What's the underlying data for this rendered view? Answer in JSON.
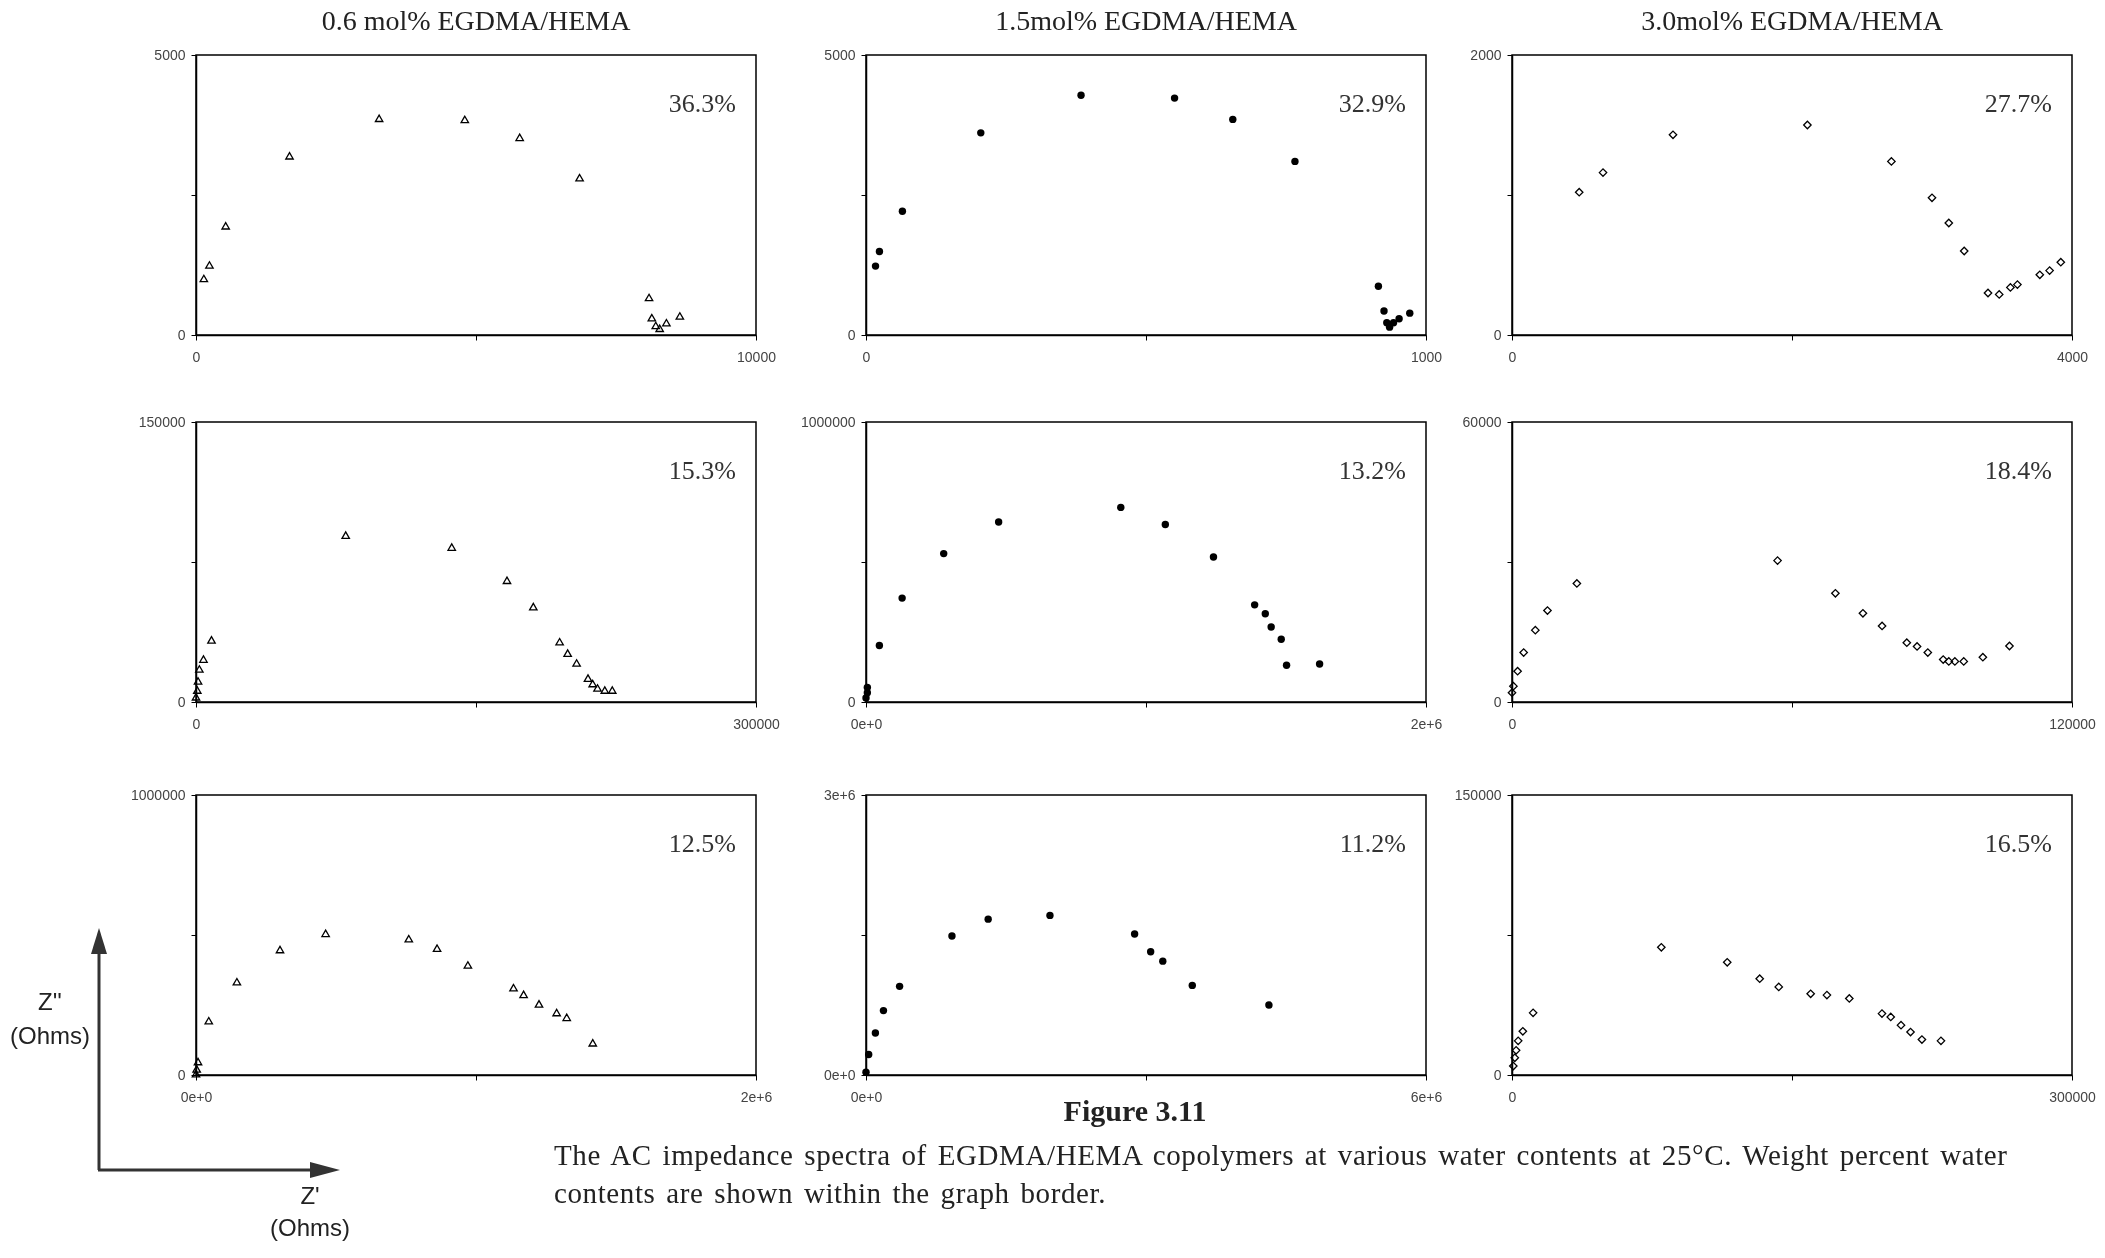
{
  "chart_data": [
    {
      "type": "scatter",
      "title": "0.6 mol% EGDMA/HEMA",
      "marker": "triangle",
      "annotations": [
        "36.3%"
      ],
      "xlim": [
        0,
        10000
      ],
      "ylim": [
        0,
        5000
      ],
      "xticks": [
        0,
        {
          "value": 5000,
          "label": null
        },
        10000
      ],
      "yticks": [
        0,
        {
          "value": 2500,
          "label": null
        },
        5000
      ],
      "series": [
        {
          "color": "#000000",
          "x": [
            140,
            240,
            530,
            1670,
            3270,
            4800,
            5780,
            6850,
            8090,
            8140,
            8210,
            8280,
            8400,
            8640
          ],
          "values": [
            1010,
            1250,
            1950,
            3200,
            3870,
            3850,
            3530,
            2810,
            670,
            310,
            170,
            120,
            220,
            340
          ]
        }
      ]
    },
    {
      "type": "scatter",
      "title": "1.5mol% EGDMA/HEMA",
      "marker": "circle",
      "annotations": [
        "32.9%"
      ],
      "xlim": [
        0,
        1000
      ],
      "ylim": [
        0,
        5000
      ],
      "xticks": [
        0,
        {
          "value": 500,
          "label": null
        },
        1000
      ],
      "yticks": [
        0,
        {
          "value": 2500,
          "label": null
        },
        5000
      ],
      "series": [
        {
          "color": "#000000",
          "x": [
            17,
            24,
            65,
            205,
            384,
            551,
            655,
            766,
            915,
            925,
            930,
            935,
            942,
            952,
            971
          ],
          "values": [
            1230,
            1490,
            2210,
            3610,
            4280,
            4230,
            3850,
            3100,
            870,
            430,
            220,
            140,
            220,
            290,
            390
          ]
        }
      ]
    },
    {
      "type": "scatter",
      "title": "3.0mol% EGDMA/HEMA",
      "marker": "diamond",
      "annotations": [
        "27.7%"
      ],
      "xlim": [
        0,
        4000
      ],
      "ylim": [
        0,
        2000
      ],
      "xticks": [
        0,
        {
          "value": 2000,
          "label": null
        },
        4000
      ],
      "yticks": [
        0,
        {
          "value": 1000,
          "label": null
        },
        2000
      ],
      "series": [
        {
          "color": "#000000",
          "x": [
            480,
            650,
            1150,
            2110,
            2710,
            3000,
            3120,
            3230,
            3400,
            3480,
            3560,
            3610,
            3770,
            3840,
            3920
          ],
          "values": [
            1020,
            1160,
            1430,
            1500,
            1240,
            980,
            800,
            600,
            300,
            290,
            340,
            360,
            430,
            460,
            520
          ]
        }
      ]
    },
    {
      "type": "scatter",
      "marker": "triangle",
      "annotations": [
        "15.3%"
      ],
      "xlim": [
        0,
        300000
      ],
      "ylim": [
        0,
        150000
      ],
      "xticks": [
        0,
        {
          "value": 150000,
          "label": null
        },
        300000
      ],
      "yticks": [
        0,
        {
          "value": 75000,
          "label": null
        },
        150000
      ],
      "series": [
        {
          "color": "#000000",
          "x": [
            0,
            700,
            1100,
            1800,
            4000,
            8300,
            80200,
            137000,
            166600,
            180700,
            194800,
            199100,
            203900,
            210000,
            212500,
            215100,
            219000,
            223000
          ],
          "values": [
            2800,
            6400,
            11300,
            17700,
            23000,
            33300,
            89400,
            83000,
            65200,
            51100,
            32300,
            26200,
            20900,
            12800,
            9900,
            7500,
            6400,
            6400
          ]
        }
      ]
    },
    {
      "type": "scatter",
      "marker": "circle",
      "annotations": [
        "13.2%"
      ],
      "xlim": [
        0,
        2000000
      ],
      "ylim": [
        0,
        1000000
      ],
      "xticks": [
        {
          "value": 0,
          "label": "0e+0"
        },
        {
          "value": 1000000,
          "label": null
        },
        {
          "value": 2000000,
          "label": "2e+6"
        }
      ],
      "yticks": [
        0,
        {
          "value": 500000,
          "label": null
        },
        1000000
      ],
      "series": [
        {
          "color": "#000000",
          "x": [
            0,
            4800,
            4800,
            47800,
            129000,
            277500,
            473700,
            910000,
            1069000,
            1241000,
            1388000,
            1426000,
            1447000,
            1483000,
            1502000,
            1620000
          ],
          "values": [
            14000,
            33000,
            52000,
            202000,
            371000,
            530000,
            643000,
            695000,
            634000,
            518000,
            347000,
            315000,
            268000,
            224000,
            131000,
            136000
          ]
        }
      ]
    },
    {
      "type": "scatter",
      "marker": "diamond",
      "annotations": [
        "18.4%"
      ],
      "xlim": [
        0,
        120000
      ],
      "ylim": [
        0,
        60000
      ],
      "xticks": [
        0,
        {
          "value": 60000,
          "label": null
        },
        120000
      ],
      "yticks": [
        0,
        {
          "value": 30000,
          "label": null
        },
        60000
      ],
      "series": [
        {
          "color": "#000000",
          "x": [
            0,
            300,
            1200,
            2500,
            5000,
            7600,
            13900,
            56900,
            69300,
            75200,
            79300,
            84600,
            86800,
            89100,
            92400,
            93600,
            94900,
            96800,
            100900,
            106600
          ],
          "values": [
            2000,
            3400,
            6600,
            10600,
            15400,
            19600,
            25400,
            30300,
            23300,
            19000,
            16300,
            12700,
            11900,
            10600,
            9100,
            8700,
            8700,
            8700,
            9600,
            12000
          ]
        }
      ]
    },
    {
      "type": "scatter",
      "marker": "triangle",
      "xlabel": "Z' (Ohms)",
      "ylabel": "Z'' (Ohms)",
      "annotations": [
        "12.5%"
      ],
      "xlim": [
        0,
        2000000
      ],
      "ylim": [
        0,
        1000000
      ],
      "xticks": [
        {
          "value": 0,
          "label": "0e+0"
        },
        {
          "value": 1000000,
          "label": null
        },
        {
          "value": 2000000,
          "label": "2e+6"
        }
      ],
      "yticks": [
        0,
        {
          "value": 500000,
          "label": null
        },
        1000000
      ],
      "series": [
        {
          "color": "#000000",
          "x": [
            0,
            2400,
            7200,
            45600,
            146000,
            300000,
            463000,
            760000,
            861000,
            971000,
            1134000,
            1170000,
            1225000,
            1288000,
            1324000,
            1417000
          ],
          "values": [
            5000,
            22000,
            48000,
            194000,
            333000,
            448000,
            506000,
            487000,
            453000,
            393000,
            312000,
            288000,
            254000,
            223000,
            206000,
            115000
          ]
        }
      ]
    },
    {
      "type": "scatter",
      "marker": "circle",
      "annotations": [
        "11.2%",
        "Figure 3.11",
        "The AC impedance spectra of EGDMA/HEMA copolymers at various water contents at 25°C.  Weight percent water contents are shown within the graph border."
      ],
      "xlim": [
        0,
        6000000
      ],
      "ylim": [
        0,
        3000000
      ],
      "xticks": [
        {
          "value": 0,
          "label": "0e+0"
        },
        {
          "value": 3000000,
          "label": null
        },
        {
          "value": 6000000,
          "label": "6e+6"
        }
      ],
      "yticks": [
        {
          "value": 0,
          "label": "0e+0"
        },
        {
          "value": 1500000,
          "label": null
        },
        {
          "value": 3000000,
          "label": "3e+6"
        }
      ],
      "series": [
        {
          "color": "#000000",
          "x": [
            0,
            28800,
            100700,
            187000,
            360000,
            921000,
            1309000,
            1971000,
            2878000,
            3050000,
            3180000,
            3496000,
            4317000
          ],
          "values": [
            30000,
            220000,
            450000,
            690000,
            950000,
            1490000,
            1670000,
            1710000,
            1510000,
            1320000,
            1220000,
            960000,
            750000
          ]
        }
      ]
    },
    {
      "type": "scatter",
      "marker": "diamond",
      "annotations": [
        "16.5%"
      ],
      "xlim": [
        0,
        300000
      ],
      "ylim": [
        0,
        150000
      ],
      "xticks": [
        0,
        {
          "value": 150000,
          "label": null
        },
        300000
      ],
      "yticks": [
        0,
        {
          "value": 75000,
          "label": null
        },
        150000
      ],
      "series": [
        {
          "color": "#000000",
          "x": [
            700,
            1500,
            2200,
            3300,
            5800,
            11300,
            80000,
            115300,
            132700,
            142900,
            160000,
            168700,
            180700,
            198200,
            202900,
            208400,
            213500,
            219600,
            229800
          ],
          "values": [
            4800,
            9200,
            13200,
            18300,
            23400,
            33300,
            68400,
            60400,
            51600,
            47200,
            43500,
            42800,
            41000,
            32900,
            31100,
            26700,
            23000,
            19000,
            18300
          ]
        }
      ]
    }
  ]
}
